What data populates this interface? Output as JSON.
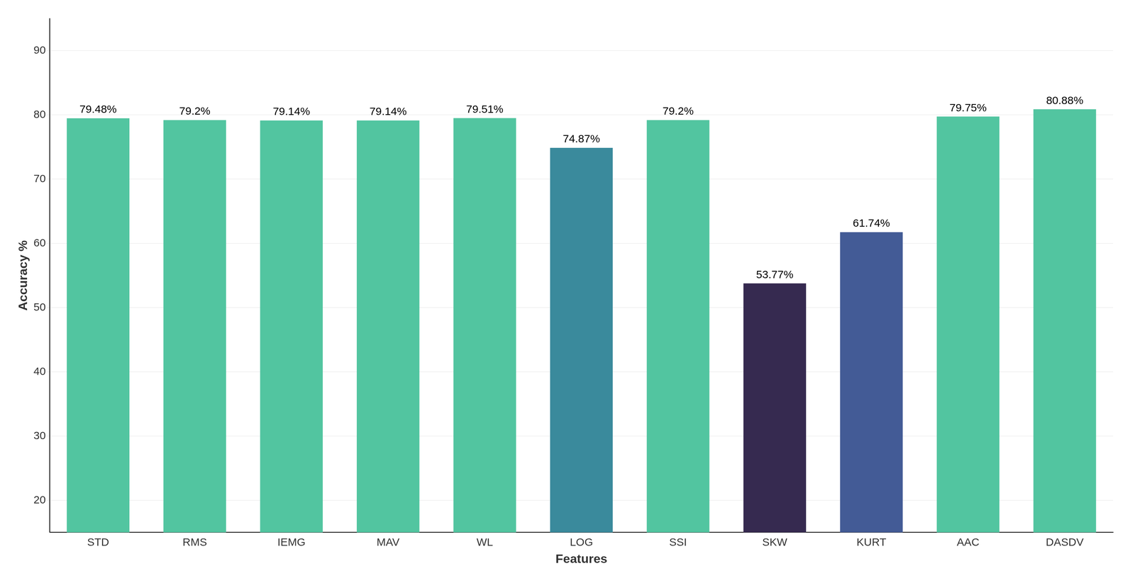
{
  "chart_data": {
    "type": "bar",
    "categories": [
      "STD",
      "RMS",
      "IEMG",
      "MAV",
      "WL",
      "LOG",
      "SSI",
      "SKW",
      "KURT",
      "AAC",
      "DASDV"
    ],
    "values": [
      79.48,
      79.2,
      79.14,
      79.14,
      79.51,
      74.87,
      79.2,
      53.77,
      61.74,
      79.75,
      80.88
    ],
    "value_labels": [
      "79.48%",
      "79.2%",
      "79.14%",
      "79.14%",
      "79.51%",
      "74.87%",
      "79.2%",
      "53.77%",
      "61.74%",
      "79.75%",
      "80.88%"
    ],
    "colors": [
      "#52c5a0",
      "#52c5a0",
      "#52c5a0",
      "#52c5a0",
      "#52c5a0",
      "#3a8a9c",
      "#52c5a0",
      "#362a50",
      "#435b96",
      "#52c5a0",
      "#52c5a0"
    ],
    "xlabel": "Features",
    "ylabel": "Accuracy %",
    "ylim": [
      15,
      95
    ],
    "yticks": [
      20,
      30,
      40,
      50,
      60,
      70,
      80,
      90
    ],
    "grid": true,
    "data_labels": true
  }
}
